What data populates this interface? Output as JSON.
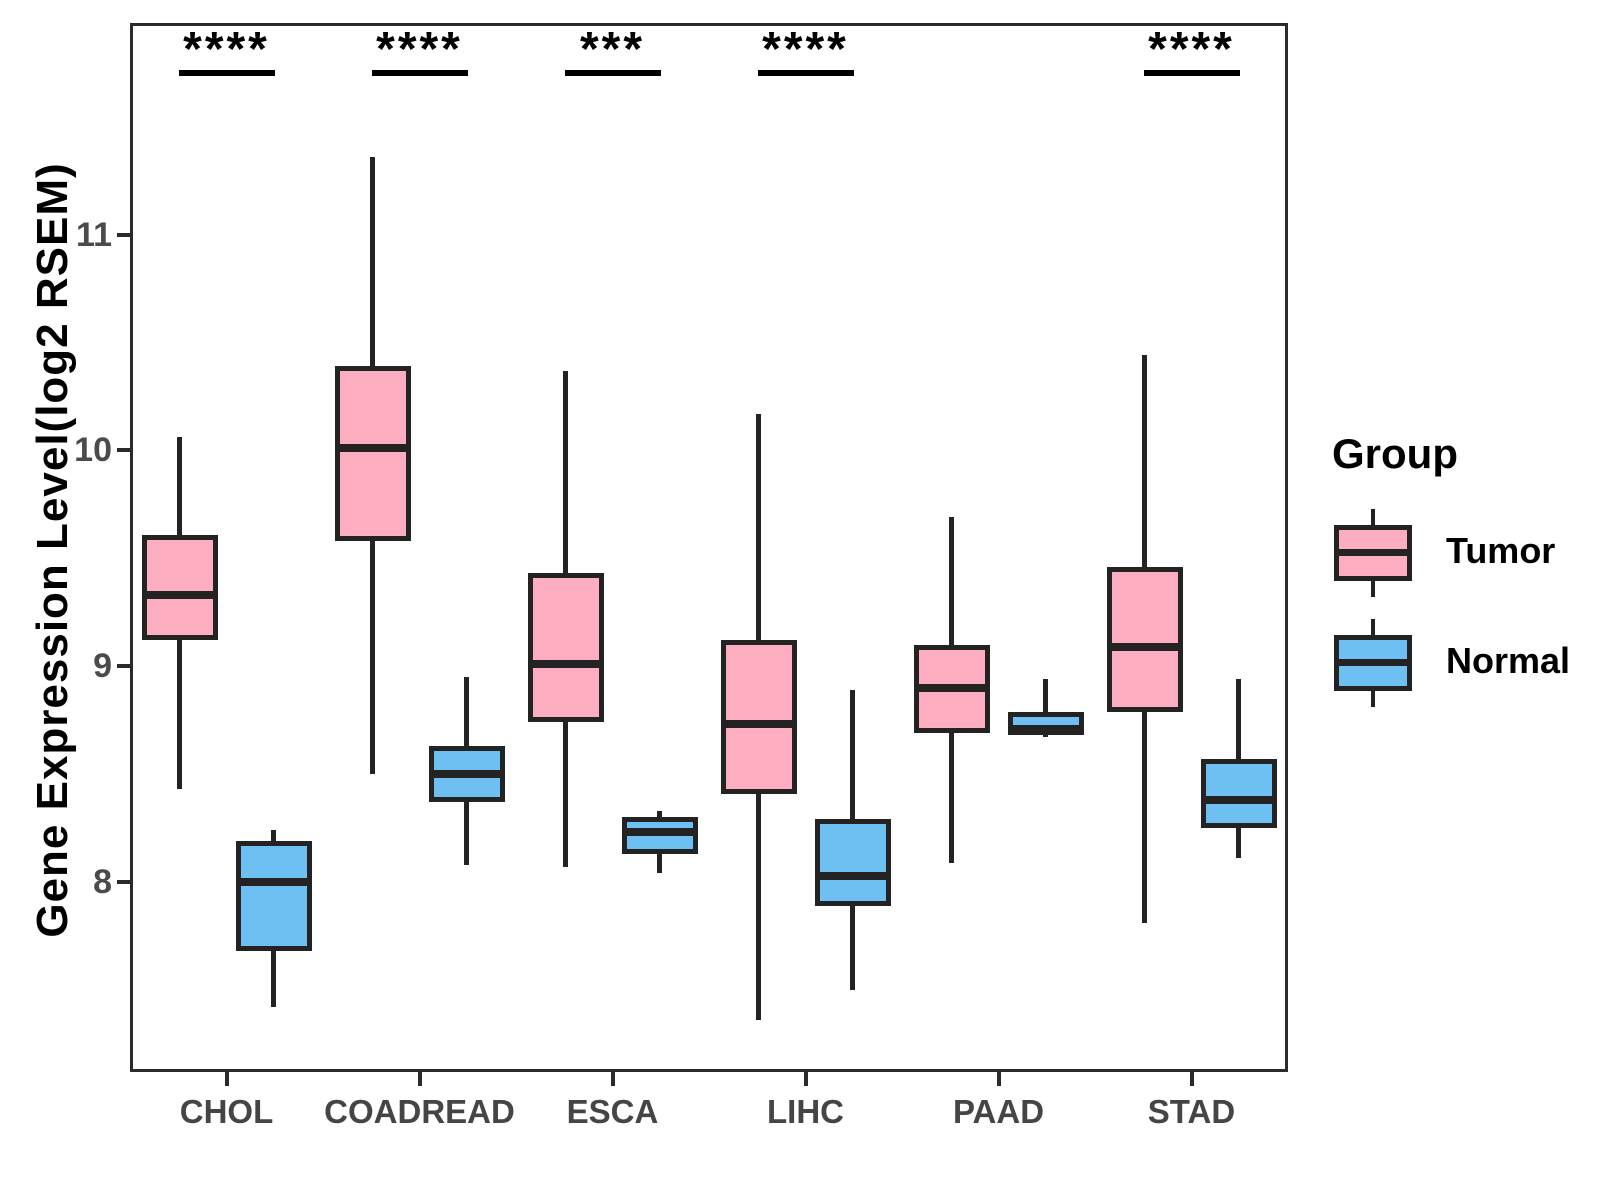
{
  "y_axis": {
    "label": "Gene Expression Level(log2 RSEM)",
    "ticks": [
      11,
      10,
      9,
      8
    ],
    "ylim": [
      7.12,
      11.98
    ]
  },
  "x_axis": {
    "categories": [
      "CHOL",
      "COADREAD",
      "ESCA",
      "LIHC",
      "PAAD",
      "STAD"
    ]
  },
  "legend": {
    "title": "Group",
    "items": [
      {
        "label": "Tumor",
        "color": "#FCAEC0"
      },
      {
        "label": "Normal",
        "color": "#6EC0F2"
      }
    ]
  },
  "significance": [
    {
      "category": "CHOL",
      "label": "****"
    },
    {
      "category": "COADREAD",
      "label": "****"
    },
    {
      "category": "ESCA",
      "label": "***"
    },
    {
      "category": "LIHC",
      "label": "****"
    },
    {
      "category": "PAAD",
      "label": ""
    },
    {
      "category": "STAD",
      "label": "****"
    }
  ],
  "chart_data": {
    "type": "boxplot",
    "title": "",
    "xlabel": "",
    "ylabel": "Gene Expression Level(log2 RSEM)",
    "ylim": [
      7.12,
      11.98
    ],
    "grid": false,
    "legend_position": "right",
    "categories": [
      "CHOL",
      "COADREAD",
      "ESCA",
      "LIHC",
      "PAAD",
      "STAD"
    ],
    "series": [
      {
        "name": "Tumor",
        "color": "#FCAEC0",
        "boxes": [
          {
            "min": 8.43,
            "q1": 9.12,
            "median": 9.33,
            "q3": 9.61,
            "max": 10.06
          },
          {
            "min": 8.5,
            "q1": 9.58,
            "median": 10.01,
            "q3": 10.39,
            "max": 11.36
          },
          {
            "min": 8.07,
            "q1": 8.74,
            "median": 9.01,
            "q3": 9.43,
            "max": 10.37
          },
          {
            "min": 7.36,
            "q1": 8.41,
            "median": 8.73,
            "q3": 9.12,
            "max": 10.17
          },
          {
            "min": 8.09,
            "q1": 8.69,
            "median": 8.9,
            "q3": 9.1,
            "max": 9.69
          },
          {
            "min": 7.81,
            "q1": 8.79,
            "median": 9.09,
            "q3": 9.46,
            "max": 10.44
          }
        ]
      },
      {
        "name": "Normal",
        "color": "#6EC0F2",
        "boxes": [
          {
            "min": 7.42,
            "q1": 7.68,
            "median": 8.0,
            "q3": 8.19,
            "max": 8.24
          },
          {
            "min": 8.08,
            "q1": 8.37,
            "median": 8.5,
            "q3": 8.63,
            "max": 8.95
          },
          {
            "min": 8.04,
            "q1": 8.13,
            "median": 8.23,
            "q3": 8.3,
            "max": 8.33
          },
          {
            "min": 7.5,
            "q1": 7.89,
            "median": 8.03,
            "q3": 8.29,
            "max": 8.89
          },
          {
            "min": 8.67,
            "q1": 8.68,
            "median": 8.71,
            "q3": 8.79,
            "max": 8.94
          },
          {
            "min": 8.11,
            "q1": 8.25,
            "median": 8.38,
            "q3": 8.57,
            "max": 8.94
          }
        ]
      }
    ]
  }
}
